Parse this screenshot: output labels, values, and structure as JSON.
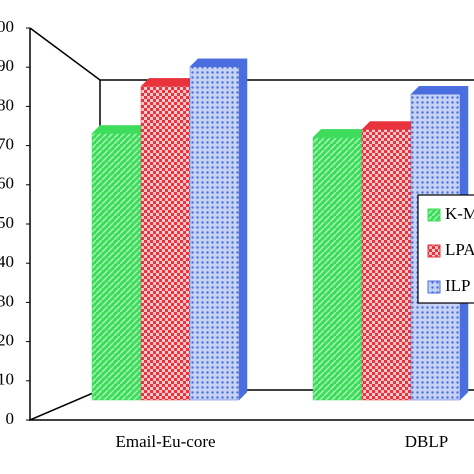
{
  "chart_data": {
    "type": "bar",
    "categories": [
      "Email-Eu-core",
      "DBLP"
    ],
    "series": [
      {
        "name": "K-M",
        "color": "#3ddc5a",
        "values": [
          68,
          67
        ]
      },
      {
        "name": "LPA",
        "color": "#e8323c",
        "values": [
          80,
          69
        ]
      },
      {
        "name": "ILP",
        "color": "#4a6ee0",
        "values": [
          85,
          78
        ]
      }
    ],
    "ylim": [
      0,
      100
    ],
    "yticks": [
      0,
      10,
      20,
      30,
      40,
      50,
      60,
      70,
      80,
      90,
      100
    ],
    "legend": "right"
  }
}
